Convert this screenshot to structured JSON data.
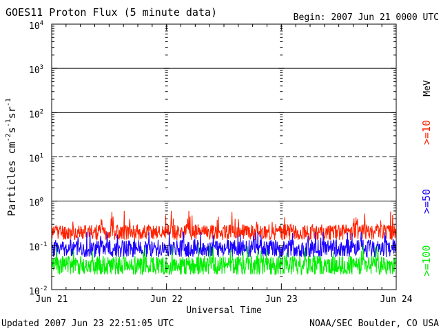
{
  "chart_data": {
    "type": "line",
    "title": "GOES11 Proton Flux (5 minute data)",
    "begin_label": "Begin: 2007 Jun 21 0000 UTC",
    "xlabel": "Universal Time",
    "ylabel_text": "Particles cm",
    "ylabel_sup1": "-2",
    "ylabel_mid1": "s",
    "ylabel_sup2": "-1",
    "ylabel_mid2": "sr",
    "ylabel_sup3": "-1",
    "x_ticks": [
      "Jun 21",
      "Jun 22",
      "Jun 23",
      "Jun 24"
    ],
    "x_range_days": [
      0,
      3
    ],
    "y_scale": "log",
    "ylim": [
      0.01,
      10000
    ],
    "y_tick_labels": [
      {
        "base": "10",
        "exp": "-2"
      },
      {
        "base": "10",
        "exp": "-1"
      },
      {
        "base": "10",
        "exp": "0"
      },
      {
        "base": "10",
        "exp": "1"
      },
      {
        "base": "10",
        "exp": "2"
      },
      {
        "base": "10",
        "exp": "3"
      },
      {
        "base": "10",
        "exp": "4"
      }
    ],
    "threshold_lines": [
      {
        "value": 1,
        "style": "solid"
      },
      {
        "value": 10,
        "style": "dashed"
      },
      {
        "value": 100,
        "style": "solid"
      },
      {
        "value": 1000,
        "style": "solid"
      }
    ],
    "series": [
      {
        "name": ">=10",
        "color": "#ff2200",
        "base": 0.2,
        "low": 0.12,
        "high": 0.6,
        "noise": 0.18,
        "seed": 11
      },
      {
        "name": ">=50",
        "color": "#1a00ff",
        "base": 0.085,
        "low": 0.045,
        "high": 0.2,
        "noise": 0.2,
        "seed": 23
      },
      {
        "name": ">=100",
        "color": "#00ee00",
        "base": 0.035,
        "low": 0.022,
        "high": 0.1,
        "noise": 0.22,
        "seed": 37
      }
    ],
    "legend_unit": "MeV",
    "grid": false,
    "legend_position": "right"
  },
  "footer": {
    "updated": "Updated 2007 Jun 23 22:51:05 UTC",
    "credit": "NOAA/SEC Boulder, CO USA"
  }
}
